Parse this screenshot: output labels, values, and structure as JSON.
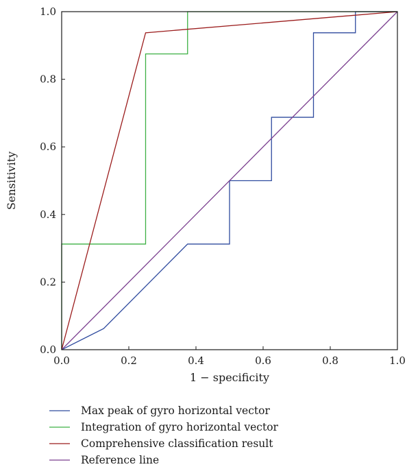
{
  "chart_data": {
    "type": "line",
    "title": "",
    "xlabel": "1 − specificity",
    "ylabel": "Sensitivity",
    "xlim": [
      0,
      1
    ],
    "ylim": [
      0,
      1
    ],
    "xticks": [
      0.0,
      0.2,
      0.4,
      0.6,
      0.8,
      1.0
    ],
    "yticks": [
      0.0,
      0.2,
      0.4,
      0.6,
      0.8,
      1.0
    ],
    "xtick_labels": [
      "0.0",
      "0.2",
      "0.4",
      "0.6",
      "0.8",
      "1.0"
    ],
    "ytick_labels": [
      "0.0",
      "0.2",
      "0.4",
      "0.6",
      "0.8",
      "1.0"
    ],
    "grid": false,
    "legend_position": "bottom",
    "series": [
      {
        "name": "Max peak of gyro horizontal vector",
        "color": "#2e4a9e",
        "x": [
          0,
          0.125,
          0.375,
          0.5,
          0.5,
          0.625,
          0.625,
          0.75,
          0.75,
          0.875,
          0.875,
          1.0
        ],
        "y": [
          0,
          0.0625,
          0.3125,
          0.3125,
          0.5,
          0.5,
          0.6875,
          0.6875,
          0.9375,
          0.9375,
          1.0,
          1.0
        ]
      },
      {
        "name": "Integration of gyro horizontal vector",
        "color": "#3cb043",
        "x": [
          0,
          0,
          0.25,
          0.25,
          0.375,
          0.375,
          1.0
        ],
        "y": [
          0,
          0.3125,
          0.3125,
          0.875,
          0.875,
          1.0,
          1.0
        ]
      },
      {
        "name": "Comprehensive classification result",
        "color": "#9b1c1c",
        "x": [
          0,
          0.25,
          1.0
        ],
        "y": [
          0,
          0.9375,
          1.0
        ]
      },
      {
        "name": "Reference line",
        "color": "#7b3f8f",
        "x": [
          0,
          1.0
        ],
        "y": [
          0,
          1.0
        ]
      }
    ]
  }
}
